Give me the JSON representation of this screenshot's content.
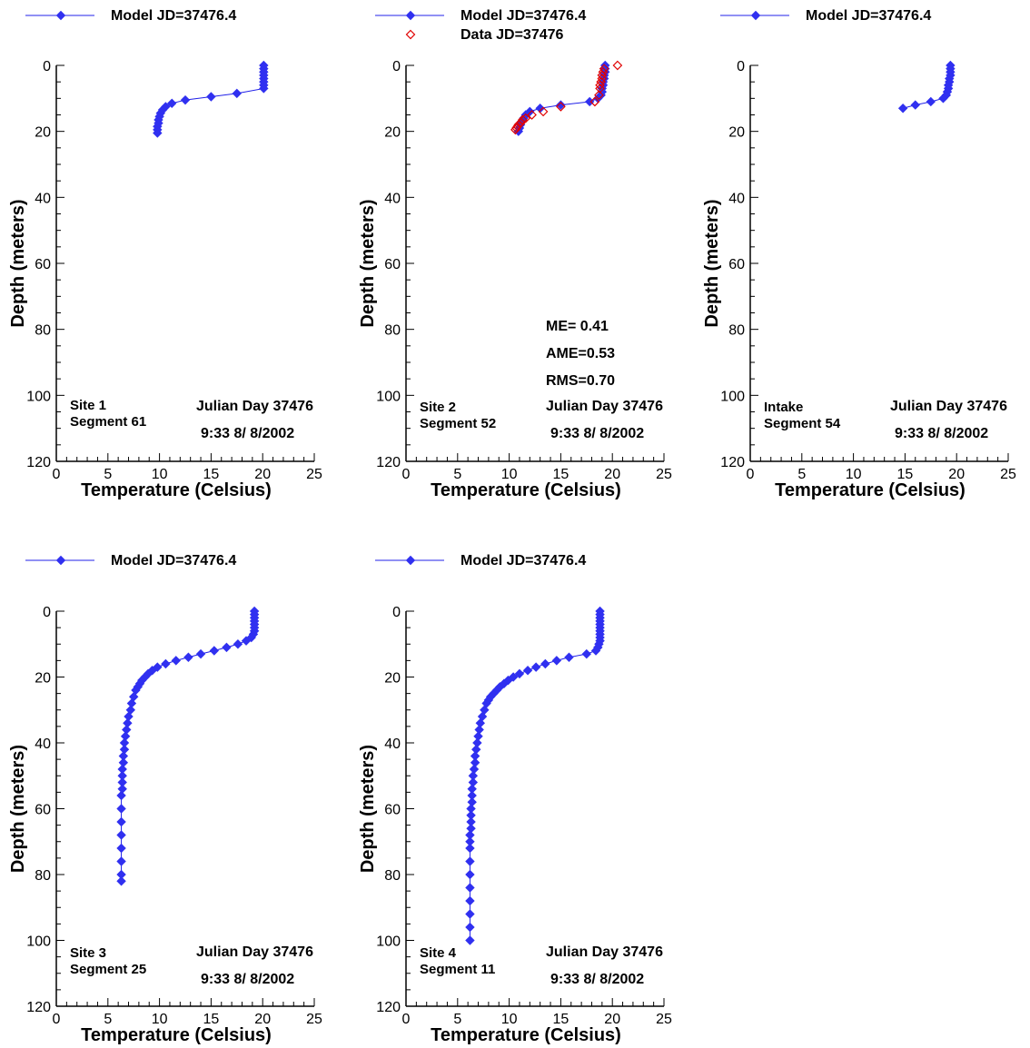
{
  "colors": {
    "model": "#3030f0",
    "model_line": "#2020e8",
    "data": "#e00000",
    "axis": "#000000"
  },
  "chart_data": [
    {
      "type": "line",
      "xlabel": "Temperature  (Celsius)",
      "ylabel": "Depth (meters)",
      "xlim": [
        0,
        25
      ],
      "ylim": [
        0,
        120
      ],
      "y_inverted": true,
      "x_ticks": [
        "0",
        "5",
        "10",
        "15",
        "20",
        "25"
      ],
      "y_ticks": [
        "0",
        "20",
        "40",
        "60",
        "80",
        "100",
        "120"
      ],
      "legend": [
        "Model JD=37476.4"
      ],
      "site_label": [
        "Site 1",
        "Segment 61"
      ],
      "date_label": [
        "Julian Day 37476",
        "9:33   8/ 8/2002"
      ],
      "stats": [],
      "series": [
        {
          "name": "Model JD=37476.4",
          "marker": "diamond-filled",
          "x": [
            20.1,
            20.1,
            20.1,
            20.1,
            20.1,
            20.1,
            20.1,
            20.1,
            17.5,
            15,
            12.5,
            11.2,
            10.6,
            10.3,
            10.1,
            10,
            9.9,
            9.9,
            9.8,
            9.8,
            9.8
          ],
          "y": [
            0,
            1,
            2,
            3,
            4,
            5,
            6,
            7,
            8.5,
            9.5,
            10.5,
            11.5,
            12.5,
            13.5,
            14.5,
            15.5,
            16.5,
            17.5,
            18.5,
            19.5,
            20.5
          ]
        }
      ]
    },
    {
      "type": "line",
      "xlabel": "Temperature  (Celsius)",
      "ylabel": "Depth (meters)",
      "xlim": [
        0,
        25
      ],
      "ylim": [
        0,
        120
      ],
      "y_inverted": true,
      "x_ticks": [
        "0",
        "5",
        "10",
        "15",
        "20",
        "25"
      ],
      "y_ticks": [
        "0",
        "20",
        "40",
        "60",
        "80",
        "100",
        "120"
      ],
      "legend": [
        "Model JD=37476.4",
        "Data JD=37476"
      ],
      "site_label": [
        "Site 2",
        "Segment 52"
      ],
      "date_label": [
        "Julian Day 37476",
        "9:33   8/ 8/2002"
      ],
      "stats": [
        "ME= 0.41",
        "AME=0.53",
        "RMS=0.70"
      ],
      "series": [
        {
          "name": "Model JD=37476.4",
          "marker": "diamond-filled",
          "x": [
            19.3,
            19.3,
            19.3,
            19.2,
            19.2,
            19.1,
            19.1,
            19.0,
            19.0,
            18.9,
            18.6,
            17.8,
            15.0,
            13.0,
            12.0,
            11.6,
            11.4,
            11.2,
            11.1,
            11.0,
            10.9
          ],
          "y": [
            0,
            1,
            2,
            3,
            4,
            5,
            6,
            7,
            8,
            9,
            10,
            11,
            12,
            13,
            14,
            15,
            16,
            17,
            18,
            19,
            20
          ]
        },
        {
          "name": "Data JD=37476",
          "marker": "diamond-open",
          "x": [
            20.5,
            19.2,
            19.1,
            19.0,
            19.0,
            18.9,
            18.8,
            18.8,
            18.7,
            18.3,
            15.0,
            13.3,
            12.2,
            11.6,
            11.3,
            11.1,
            10.9,
            10.8,
            10.7,
            10.6
          ],
          "y": [
            0,
            1,
            2,
            3,
            4,
            5,
            6,
            7,
            9,
            11,
            12.5,
            14,
            15,
            16,
            16.5,
            17.5,
            18,
            18.5,
            19,
            19.5
          ]
        }
      ]
    },
    {
      "type": "line",
      "xlabel": "Temperature  (Celsius)",
      "ylabel": "Depth (meters)",
      "xlim": [
        0,
        25
      ],
      "ylim": [
        0,
        120
      ],
      "y_inverted": true,
      "x_ticks": [
        "0",
        "5",
        "10",
        "15",
        "20",
        "25"
      ],
      "y_ticks": [
        "0",
        "20",
        "40",
        "60",
        "80",
        "100",
        "120"
      ],
      "legend": [
        "Model JD=37476.4"
      ],
      "site_label": [
        "Intake",
        "Segment 54"
      ],
      "date_label": [
        "Julian Day 37476",
        "9:33   8/ 8/2002"
      ],
      "stats": [],
      "series": [
        {
          "name": "Model JD=37476.4",
          "marker": "diamond-filled",
          "x": [
            19.4,
            19.4,
            19.4,
            19.4,
            19.3,
            19.3,
            19.2,
            19.2,
            19.1,
            19.0,
            18.7,
            17.5,
            16.0,
            14.8
          ],
          "y": [
            0,
            1,
            2,
            3,
            4,
            5,
            6,
            7,
            8,
            9,
            10,
            11,
            12,
            13
          ]
        }
      ]
    },
    {
      "type": "line",
      "xlabel": "Temperature (Celsius)",
      "ylabel": "Depth (meters)",
      "xlim": [
        0,
        25
      ],
      "ylim": [
        0,
        120
      ],
      "y_inverted": true,
      "x_ticks": [
        "0",
        "5",
        "10",
        "15",
        "20",
        "25"
      ],
      "y_ticks": [
        "0",
        "20",
        "40",
        "60",
        "80",
        "100",
        "120"
      ],
      "legend": [
        "Model JD=37476.4"
      ],
      "site_label": [
        "Site 3",
        "Segment 25"
      ],
      "date_label": [
        "Julian Day 37476",
        "9:33   8/ 8/2002"
      ],
      "stats": [],
      "series": [
        {
          "name": "Model JD=37476.4",
          "marker": "diamond-filled",
          "x": [
            19.2,
            19.2,
            19.2,
            19.2,
            19.2,
            19.2,
            19.2,
            19.1,
            18.9,
            18.4,
            17.6,
            16.5,
            15.3,
            14.0,
            12.8,
            11.6,
            10.6,
            9.8,
            9.3,
            8.9,
            8.6,
            8.3,
            8.1,
            7.9,
            7.7,
            7.5,
            7.3,
            7.2,
            7.0,
            6.9,
            6.8,
            6.7,
            6.6,
            6.6,
            6.5,
            6.5,
            6.4,
            6.4,
            6.4,
            6.4,
            6.3,
            6.3,
            6.3,
            6.3,
            6.3,
            6.3,
            6.3,
            6.3
          ],
          "y": [
            0,
            1,
            2,
            3,
            4,
            5,
            6,
            7,
            8,
            9,
            10,
            11,
            12,
            13,
            14,
            15,
            16,
            17,
            18,
            19,
            20,
            21,
            22,
            23,
            24,
            26,
            28,
            30,
            32,
            34,
            36,
            38,
            40,
            42,
            44,
            46,
            48,
            50,
            52,
            54,
            56,
            60,
            64,
            68,
            72,
            76,
            80,
            82
          ]
        }
      ]
    },
    {
      "type": "line",
      "xlabel": "Temperature (Celsius)",
      "ylabel": "Depth (meters)",
      "xlim": [
        0,
        25
      ],
      "ylim": [
        0,
        120
      ],
      "y_inverted": true,
      "x_ticks": [
        "0",
        "5",
        "10",
        "15",
        "20",
        "25"
      ],
      "y_ticks": [
        "0",
        "20",
        "40",
        "60",
        "80",
        "100",
        "120"
      ],
      "legend": [
        "Model JD=37476.4"
      ],
      "site_label": [
        "Site 4",
        "Segment 11"
      ],
      "date_label": [
        "Julian Day 37476",
        "9:33   8/ 8/2002"
      ],
      "stats": [],
      "series": [
        {
          "name": "Model JD=37476.4",
          "marker": "diamond-filled",
          "x": [
            18.8,
            18.8,
            18.8,
            18.8,
            18.8,
            18.8,
            18.8,
            18.8,
            18.8,
            18.8,
            18.7,
            18.6,
            18.4,
            17.5,
            15.8,
            14.6,
            13.5,
            12.6,
            11.8,
            11.0,
            10.4,
            9.9,
            9.5,
            9.1,
            8.8,
            8.5,
            8.2,
            8.0,
            7.8,
            7.6,
            7.4,
            7.2,
            7.1,
            7.0,
            6.9,
            6.8,
            6.7,
            6.7,
            6.6,
            6.5,
            6.5,
            6.4,
            6.4,
            6.4,
            6.3,
            6.3,
            6.3,
            6.3,
            6.2,
            6.2,
            6.2,
            6.2,
            6.2,
            6.2,
            6.2,
            6.2,
            6.2,
            6.2
          ],
          "y": [
            0,
            1,
            2,
            3,
            4,
            5,
            6,
            7,
            8,
            9,
            10,
            11,
            12,
            13,
            14,
            15,
            16,
            17,
            18,
            19,
            20,
            21,
            22,
            23,
            24,
            25,
            26,
            27,
            28,
            30,
            32,
            34,
            36,
            38,
            40,
            42,
            44,
            46,
            48,
            50,
            52,
            54,
            56,
            58,
            60,
            62,
            64,
            66,
            68,
            70,
            72,
            76,
            80,
            84,
            88,
            92,
            96,
            100
          ]
        }
      ]
    }
  ]
}
